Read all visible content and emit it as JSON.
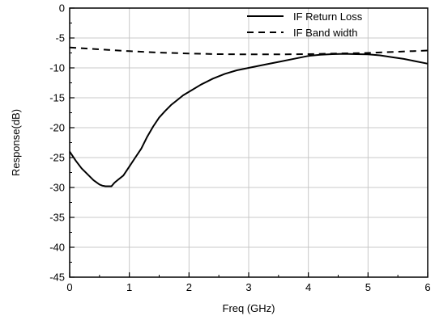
{
  "chart_data": {
    "type": "line",
    "xlabel": "Freq (GHz)",
    "ylabel": "Response(dB)",
    "xlim": [
      0,
      6
    ],
    "ylim": [
      -45,
      0
    ],
    "xticks": [
      0,
      1,
      2,
      3,
      4,
      5,
      6
    ],
    "yticks": [
      0,
      -5,
      -10,
      -15,
      -20,
      -25,
      -30,
      -35,
      -40,
      -45
    ],
    "grid": true,
    "legend_position": "top-right",
    "series": [
      {
        "name": "IF Return Loss",
        "line_style": "solid",
        "color": "#000000",
        "x": [
          0,
          0.1,
          0.2,
          0.3,
          0.4,
          0.5,
          0.55,
          0.6,
          0.65,
          0.7,
          0.75,
          0.8,
          0.9,
          1.0,
          1.1,
          1.2,
          1.3,
          1.4,
          1.5,
          1.6,
          1.7,
          1.8,
          1.9,
          2.0,
          2.2,
          2.4,
          2.6,
          2.8,
          3.0,
          3.2,
          3.5,
          3.8,
          4.0,
          4.2,
          4.4,
          4.6,
          4.8,
          5.0,
          5.2,
          5.4,
          5.6,
          5.8,
          6.0
        ],
        "y": [
          -24,
          -25.5,
          -26.8,
          -27.8,
          -28.8,
          -29.5,
          -29.7,
          -29.8,
          -29.8,
          -29.8,
          -29.2,
          -28.8,
          -28,
          -26.5,
          -25,
          -23.5,
          -21.5,
          -19.8,
          -18.3,
          -17.2,
          -16.2,
          -15.4,
          -14.6,
          -14,
          -12.8,
          -11.8,
          -11,
          -10.4,
          -10,
          -9.6,
          -9,
          -8.4,
          -8,
          -7.8,
          -7.7,
          -7.65,
          -7.7,
          -7.75,
          -7.9,
          -8.2,
          -8.5,
          -8.9,
          -9.3
        ]
      },
      {
        "name": "IF Band width",
        "line_style": "dashed",
        "color": "#000000",
        "x": [
          0,
          0.5,
          1.0,
          1.5,
          2.0,
          2.5,
          3.0,
          3.5,
          4.0,
          4.5,
          5.0,
          5.5,
          6.0
        ],
        "y": [
          -6.6,
          -6.9,
          -7.2,
          -7.45,
          -7.6,
          -7.7,
          -7.75,
          -7.75,
          -7.7,
          -7.6,
          -7.5,
          -7.3,
          -7.1
        ]
      }
    ]
  }
}
